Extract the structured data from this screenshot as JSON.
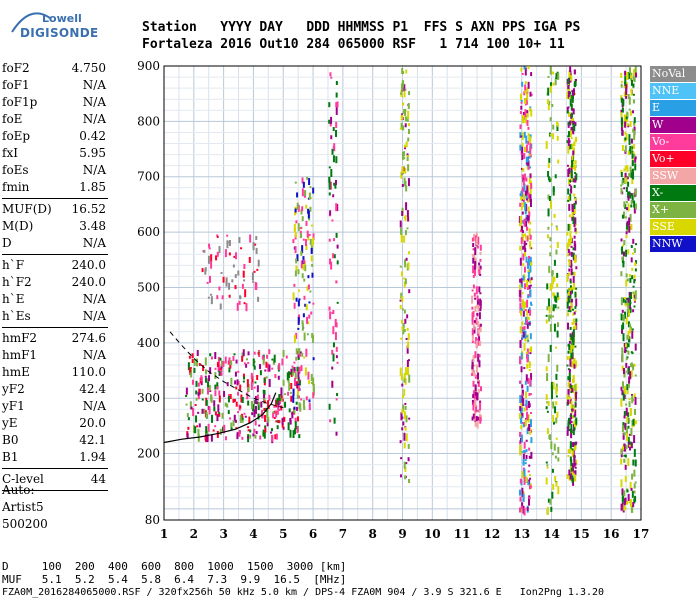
{
  "logo": {
    "line1": "Lowell",
    "line2": "DIGISONDE"
  },
  "header": {
    "labels_line": "Station   YYYY DAY   DDD HHMMSS P1  FFS S AXN PPS IGA PS",
    "values_line": "Fortaleza 2016 Out10 284 065000 RSF   1 714 100 10+ 11"
  },
  "params": [
    {
      "group": 1,
      "name": "foF2",
      "value": "4.750"
    },
    {
      "group": 1,
      "name": "foF1",
      "value": "N/A"
    },
    {
      "group": 1,
      "name": "foF1p",
      "value": "N/A"
    },
    {
      "group": 1,
      "name": "foE",
      "value": "N/A"
    },
    {
      "group": 1,
      "name": "foEp",
      "value": "0.42"
    },
    {
      "group": 1,
      "name": "fxI",
      "value": "5.95"
    },
    {
      "group": 1,
      "name": "foEs",
      "value": "N/A"
    },
    {
      "group": 1,
      "name": "fmin",
      "value": "1.85"
    },
    {
      "group": 2,
      "name": "MUF(D)",
      "value": "16.52"
    },
    {
      "group": 2,
      "name": "M(D)",
      "value": "3.48"
    },
    {
      "group": 2,
      "name": "D",
      "value": "N/A"
    },
    {
      "group": 3,
      "name": "h`F",
      "value": "240.0"
    },
    {
      "group": 3,
      "name": "h`F2",
      "value": "240.0"
    },
    {
      "group": 3,
      "name": "h`E",
      "value": "N/A"
    },
    {
      "group": 3,
      "name": "h`Es",
      "value": "N/A"
    },
    {
      "group": 4,
      "name": "hmF2",
      "value": "274.6"
    },
    {
      "group": 4,
      "name": "hmF1",
      "value": "N/A"
    },
    {
      "group": 4,
      "name": "hmE",
      "value": "110.0"
    },
    {
      "group": 4,
      "name": "yF2",
      "value": "42.4"
    },
    {
      "group": 4,
      "name": "yF1",
      "value": "N/A"
    },
    {
      "group": 4,
      "name": "yE",
      "value": "20.0"
    },
    {
      "group": 4,
      "name": "B0",
      "value": "42.1"
    },
    {
      "group": 4,
      "name": "B1",
      "value": "1.94"
    },
    {
      "group": 5,
      "name": "C-level",
      "value": "44"
    }
  ],
  "auto": {
    "line1": "Auto:",
    "line2": "Artist5",
    "line3": "500200"
  },
  "legend": [
    {
      "label": "NoVal",
      "color": "#8c8c8c"
    },
    {
      "label": "NNE",
      "color": "#4fc3f7"
    },
    {
      "label": "E",
      "color": "#29a0e6"
    },
    {
      "label": "W",
      "color": "#a0008c"
    },
    {
      "label": "Vo-",
      "color": "#ff3c9c"
    },
    {
      "label": "Vo+",
      "color": "#ff0028"
    },
    {
      "label": "SSW",
      "color": "#f4a6a6"
    },
    {
      "label": "X-",
      "color": "#007a10"
    },
    {
      "label": "X+",
      "color": "#7cb342"
    },
    {
      "label": "SSE",
      "color": "#d8d800"
    },
    {
      "label": "NNW",
      "color": "#1010c8"
    }
  ],
  "footer": {
    "d_line": "D     100  200  400  600  800  1000  1500  3000 [km]",
    "muf_line": "MUF   5.1  5.2  5.4  5.8  6.4  7.3  9.9  16.5  [MHz]",
    "file_line": "FZA0M_2016284065000.RSF / 320fx256h 50 kHz 5.0 km / DPS-4 FZA0M 904 / 3.9 S 321.6 E   Ion2Png 1.3.20"
  },
  "chart_data": {
    "type": "scatter",
    "xlim": [
      1,
      17
    ],
    "ylim": [
      80,
      900
    ],
    "x_ticks": [
      "1",
      "2",
      "3",
      "4",
      "5",
      "6",
      "7",
      "8",
      "9",
      "10",
      "11",
      "12",
      "13",
      "14",
      "15",
      "16",
      "17"
    ],
    "y_ticks": [
      "80",
      "200",
      "300",
      "400",
      "500",
      "600",
      "700",
      "800",
      "900"
    ],
    "grid": true,
    "trace_solid": [
      [
        1.0,
        220
      ],
      [
        1.6,
        226
      ],
      [
        2.2,
        230
      ],
      [
        2.8,
        236
      ],
      [
        3.4,
        244
      ],
      [
        3.9,
        256
      ],
      [
        4.3,
        270
      ],
      [
        4.6,
        290
      ],
      [
        4.75,
        310
      ]
    ],
    "trace_dashed": [
      [
        1.2,
        420
      ],
      [
        1.6,
        395
      ],
      [
        2.0,
        372
      ],
      [
        2.5,
        348
      ],
      [
        3.0,
        330
      ],
      [
        3.5,
        315
      ],
      [
        4.0,
        300
      ],
      [
        4.5,
        290
      ],
      [
        5.0,
        283
      ]
    ],
    "bands": [
      {
        "x_from": 1.7,
        "x_to": 5.6,
        "y_from": 230,
        "y_to": 390,
        "density": "high",
        "colors": [
          "#ff0028",
          "#7cb342",
          "#007a10",
          "#ff3c9c",
          "#a0008c"
        ]
      },
      {
        "x_from": 2.2,
        "x_to": 4.2,
        "y_from": 470,
        "y_to": 600,
        "density": "low",
        "colors": [
          "#8c8c8c",
          "#ff0028",
          "#ff3c9c"
        ]
      },
      {
        "x_from": 5.3,
        "x_to": 6.0,
        "y_from": 280,
        "y_to": 700,
        "density": "med",
        "colors": [
          "#7cb342",
          "#d8d800",
          "#1010c8",
          "#ff3c9c"
        ]
      },
      {
        "x_from": 6.5,
        "x_to": 6.8,
        "y_from": 200,
        "y_to": 900,
        "density": "low",
        "colors": [
          "#a0008c",
          "#ff3c9c",
          "#007a10"
        ]
      },
      {
        "x_from": 8.9,
        "x_to": 9.2,
        "y_from": 150,
        "y_to": 900,
        "density": "med",
        "colors": [
          "#d8d800",
          "#7cb342",
          "#a0008c"
        ]
      },
      {
        "x_from": 11.3,
        "x_to": 11.6,
        "y_from": 250,
        "y_to": 600,
        "density": "med",
        "colors": [
          "#ff3c9c",
          "#a0008c",
          "#f4a6a6"
        ]
      },
      {
        "x_from": 12.9,
        "x_to": 13.3,
        "y_from": 100,
        "y_to": 900,
        "density": "high",
        "colors": [
          "#d8d800",
          "#a0008c",
          "#29a0e6",
          "#ff3c9c"
        ]
      },
      {
        "x_from": 13.8,
        "x_to": 14.2,
        "y_from": 100,
        "y_to": 900,
        "density": "med",
        "colors": [
          "#d8d800",
          "#007a10",
          "#7cb342"
        ]
      },
      {
        "x_from": 14.5,
        "x_to": 14.8,
        "y_from": 150,
        "y_to": 900,
        "density": "high",
        "colors": [
          "#d8d800",
          "#007a10",
          "#a0008c"
        ]
      },
      {
        "x_from": 16.3,
        "x_to": 16.8,
        "y_from": 100,
        "y_to": 900,
        "density": "high",
        "colors": [
          "#007a10",
          "#7cb342",
          "#d8d800",
          "#a0008c"
        ]
      }
    ]
  }
}
